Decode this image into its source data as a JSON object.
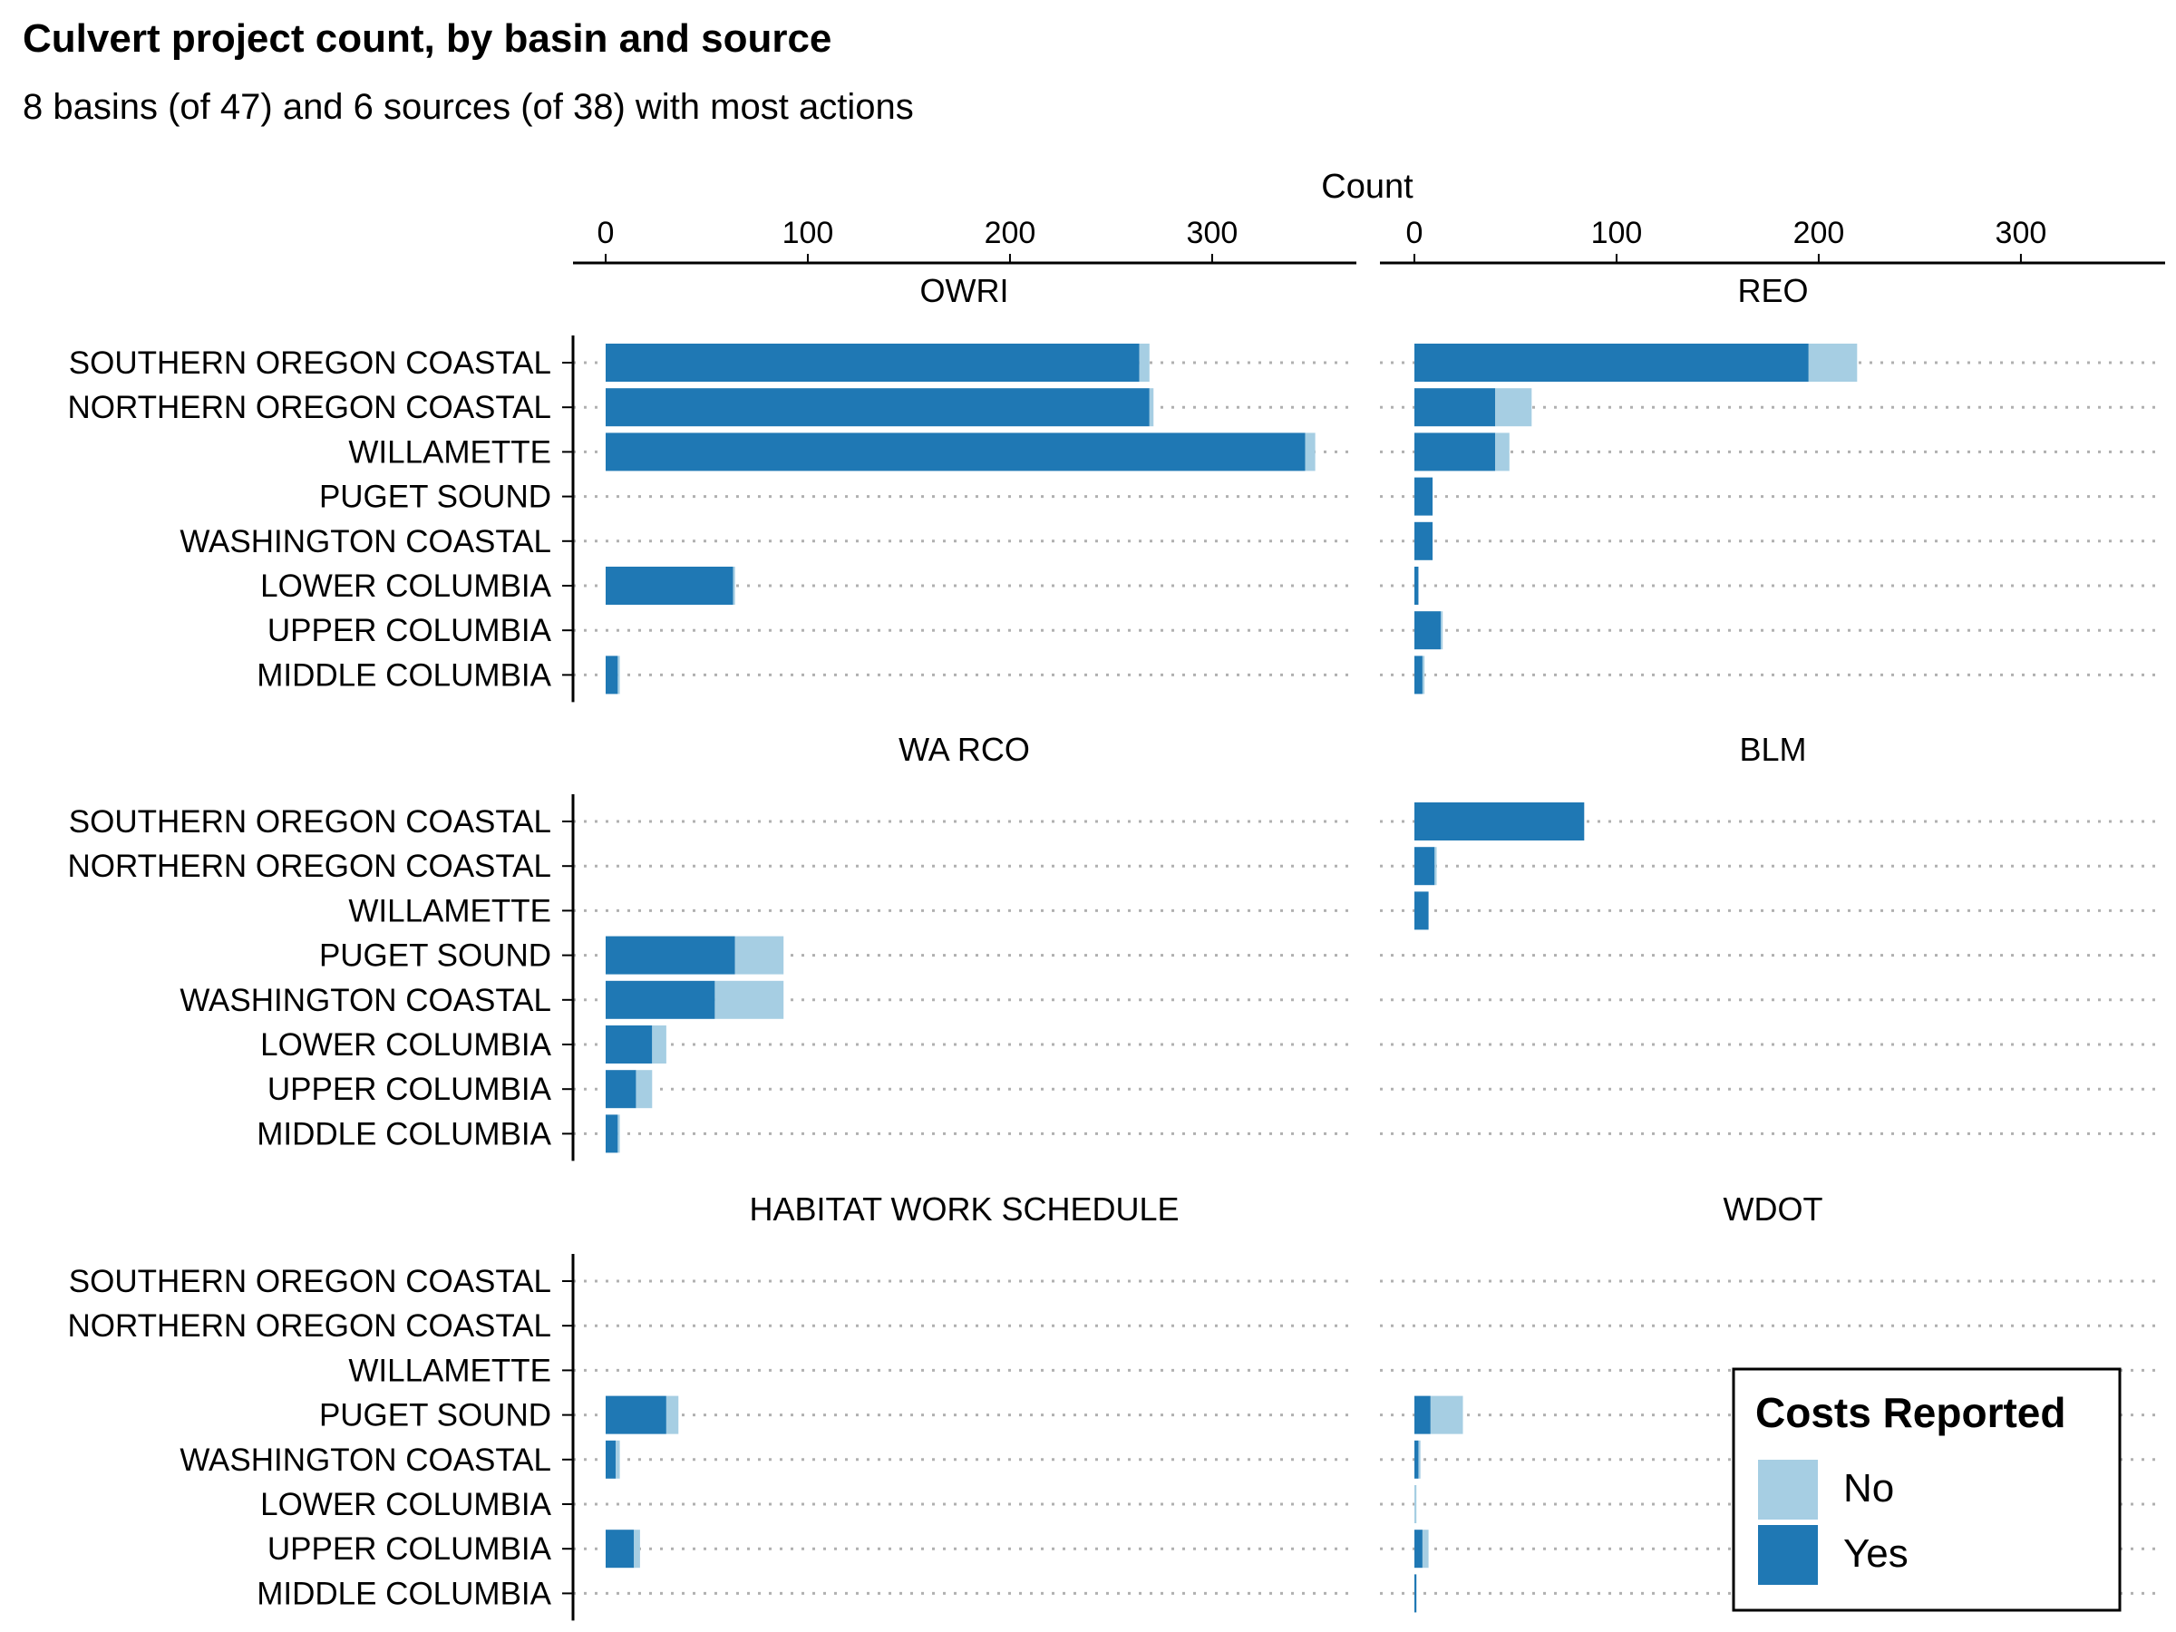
{
  "chart_data": {
    "type": "bar",
    "orientation": "horizontal",
    "stacked": true,
    "title": "Culvert project count, by basin and source",
    "subtitle": "8 basins (of 47) and 6 sources (of 38) with most actions",
    "xlabel": "Count",
    "x_axis_position": "top",
    "xlim": [
      0,
      370
    ],
    "xticks": [
      0,
      100,
      200,
      300
    ],
    "categories": [
      "SOUTHERN OREGON COASTAL",
      "NORTHERN OREGON COASTAL",
      "WILLAMETTE",
      "PUGET SOUND",
      "WASHINGTON COASTAL",
      "LOWER COLUMBIA",
      "UPPER COLUMBIA",
      "MIDDLE COLUMBIA"
    ],
    "legend": {
      "title": "Costs Reported",
      "position": "bottom-right",
      "entries": [
        {
          "label": "No",
          "color": "#a6cee3"
        },
        {
          "label": "Yes",
          "color": "#1f78b4"
        }
      ]
    },
    "grid": "dotted horizontal",
    "panels": [
      {
        "name": "OWRI",
        "series": [
          {
            "name": "Yes",
            "values": [
              264,
              269,
              346,
              0,
              0,
              63,
              0,
              6
            ]
          },
          {
            "name": "No",
            "values": [
              5,
              2,
              5,
              0,
              0,
              1,
              0,
              1
            ]
          }
        ]
      },
      {
        "name": "REO",
        "series": [
          {
            "name": "Yes",
            "values": [
              195,
              40,
              40,
              9,
              9,
              2,
              13,
              4
            ]
          },
          {
            "name": "No",
            "values": [
              24,
              18,
              7,
              0,
              0,
              0,
              1,
              1
            ]
          }
        ]
      },
      {
        "name": "WA RCO",
        "series": [
          {
            "name": "Yes",
            "values": [
              0,
              0,
              0,
              64,
              54,
              23,
              15,
              6
            ]
          },
          {
            "name": "No",
            "values": [
              0,
              0,
              0,
              24,
              34,
              7,
              8,
              1
            ]
          }
        ]
      },
      {
        "name": "BLM",
        "series": [
          {
            "name": "Yes",
            "values": [
              84,
              10,
              7,
              0,
              0,
              0,
              0,
              0
            ]
          },
          {
            "name": "No",
            "values": [
              0,
              1,
              0,
              0,
              0,
              0,
              0,
              0
            ]
          }
        ]
      },
      {
        "name": "HABITAT WORK SCHEDULE",
        "series": [
          {
            "name": "Yes",
            "values": [
              0,
              0,
              0,
              30,
              5,
              0,
              14,
              0
            ]
          },
          {
            "name": "No",
            "values": [
              0,
              0,
              0,
              6,
              2,
              0,
              3,
              0
            ]
          }
        ]
      },
      {
        "name": "WDOT",
        "series": [
          {
            "name": "Yes",
            "values": [
              0,
              0,
              0,
              8,
              2,
              0,
              4,
              1
            ]
          },
          {
            "name": "No",
            "values": [
              0,
              0,
              0,
              16,
              1,
              1,
              3,
              0
            ]
          }
        ]
      }
    ]
  }
}
